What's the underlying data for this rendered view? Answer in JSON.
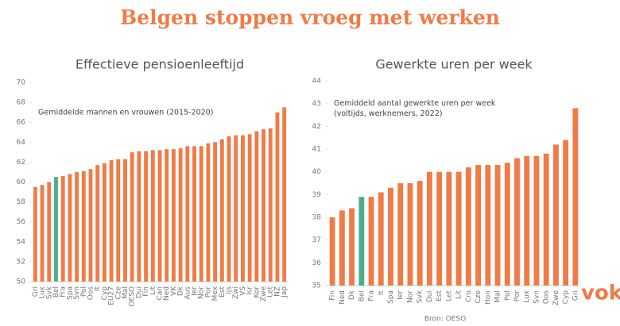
{
  "header": {
    "title": "Belgen stoppen vroeg met werken",
    "source": "Bron: OESO",
    "logo": "voka"
  },
  "chart_data": [
    {
      "type": "bar",
      "title": "Effectieve pensioenleeftijd",
      "annotation": "Gemiddelde mannen en vrouwen (2015-2020)",
      "categories": [
        "Gri",
        "Lux",
        "Svk",
        "Bel",
        "Fra",
        "Spa",
        "Svn",
        "Pol",
        "Oos",
        "It",
        "Cyp",
        "EU27",
        "Cze",
        "Mal",
        "OESO",
        "Dui",
        "Fin",
        "Lit",
        "Can",
        "Ned",
        "VK",
        "Dk",
        "Aus",
        "Ier",
        "Nor",
        "Por",
        "Mex",
        "Est",
        "Ijs",
        "Zwi",
        "VS",
        "Isr",
        "Kor",
        "Zwe",
        "Let",
        "NZ",
        "Jap"
      ],
      "values": [
        59.5,
        59.7,
        60.0,
        60.5,
        60.6,
        60.8,
        61.0,
        61.1,
        61.3,
        61.7,
        61.9,
        62.2,
        62.3,
        62.3,
        63.0,
        63.1,
        63.1,
        63.2,
        63.2,
        63.3,
        63.3,
        63.4,
        63.6,
        63.6,
        63.6,
        63.9,
        64.0,
        64.3,
        64.6,
        64.7,
        64.7,
        64.8,
        65.1,
        65.3,
        65.4,
        67.0,
        67.5
      ],
      "color": "#ef7b47",
      "highlight": "Bel",
      "highlight_color": "#4bae8c",
      "ylim": [
        50,
        70
      ],
      "yticks": [
        50,
        52,
        54,
        56,
        58,
        60,
        62,
        64,
        66,
        68,
        70
      ],
      "grid": false
    },
    {
      "type": "bar",
      "title": "Gewerkte uren per week",
      "annotation": "Gemiddeld aantal gewerkte uren per week (voltijds, werknemers, 2022)",
      "categories": [
        "Fin",
        "Ned",
        "Dk",
        "Bel",
        "Fra",
        "It",
        "Spa",
        "Ier",
        "Nor",
        "Svk",
        "Dui",
        "Est",
        "Let",
        "Lit",
        "Cro",
        "Cze",
        "Hon",
        "Mal",
        "Pol",
        "Por",
        "Lux",
        "Svn",
        "Oos",
        "Zwe",
        "Cyp",
        "Gri"
      ],
      "values": [
        38.0,
        38.3,
        38.4,
        38.9,
        38.9,
        39.1,
        39.3,
        39.5,
        39.5,
        39.6,
        40.0,
        40.0,
        40.0,
        40.0,
        40.2,
        40.3,
        40.3,
        40.3,
        40.4,
        40.6,
        40.7,
        40.7,
        40.8,
        41.2,
        41.4,
        42.8
      ],
      "color": "#ef7b47",
      "highlight": "Bel",
      "highlight_color": "#4bae8c",
      "ylim": [
        35,
        44
      ],
      "yticks": [
        35,
        36,
        37,
        38,
        39,
        40,
        41,
        42,
        43,
        44
      ],
      "grid": false
    }
  ]
}
